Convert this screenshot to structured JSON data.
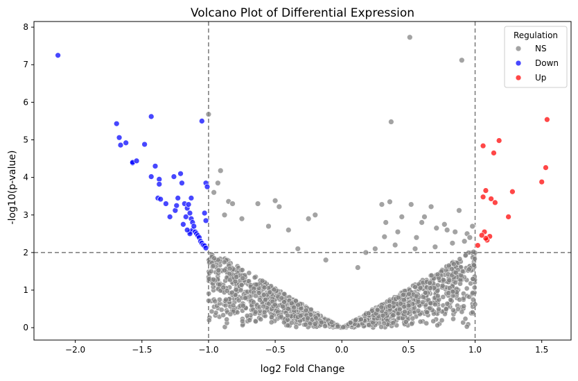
{
  "chart_data": {
    "type": "scatter",
    "title": "Volcano Plot of Differential Expression",
    "xlabel": "log2 Fold Change",
    "ylabel": "-log10(p-value)",
    "xlim": [
      -2.31,
      1.72
    ],
    "ylim": [
      -0.33,
      8.15
    ],
    "xticks": [
      -2.0,
      -1.5,
      -1.0,
      -0.5,
      0.0,
      0.5,
      1.0,
      1.5
    ],
    "xtick_labels": [
      "−2.0",
      "−1.5",
      "−1.0",
      "−0.5",
      "0.0",
      "0.5",
      "1.0",
      "1.5"
    ],
    "yticks": [
      0,
      1,
      2,
      3,
      4,
      5,
      6,
      7,
      8
    ],
    "ytick_labels": [
      "0",
      "1",
      "2",
      "3",
      "4",
      "5",
      "6",
      "7",
      "8"
    ],
    "thresholds": {
      "x": [
        -1.0,
        1.0
      ],
      "y": 2.0
    },
    "grid": false,
    "legend": {
      "title": "Regulation",
      "position": "top-right"
    },
    "series": [
      {
        "name": "NS",
        "color": "#808080",
        "x": [
          0.51,
          0.9,
          0.37,
          -1.0,
          -0.93,
          -0.96,
          -0.91,
          -0.85,
          -0.5,
          -0.82,
          -0.63,
          -0.47,
          -0.2,
          -0.25,
          -0.88,
          -0.75,
          -0.55,
          -0.4,
          0.3,
          0.36,
          0.52,
          0.45,
          0.62,
          0.67,
          0.77,
          0.79,
          0.88,
          0.94,
          0.98,
          0.33,
          0.32,
          0.6,
          0.42,
          0.71,
          0.85,
          0.56,
          0.18,
          0.12,
          -0.12,
          -0.33,
          0.25,
          0.4,
          0.55,
          0.7,
          0.83,
          0.92,
          0.96
        ],
        "y": [
          7.73,
          7.12,
          5.48,
          5.68,
          3.85,
          3.6,
          4.18,
          3.36,
          3.38,
          3.3,
          3.3,
          3.22,
          3.0,
          2.9,
          3.0,
          2.9,
          2.7,
          2.6,
          3.28,
          3.35,
          3.28,
          2.95,
          2.95,
          3.22,
          2.75,
          2.6,
          3.12,
          2.5,
          2.7,
          2.8,
          2.42,
          2.8,
          2.55,
          2.65,
          2.55,
          2.4,
          2.0,
          1.6,
          1.8,
          2.1,
          2.1,
          2.2,
          2.1,
          2.15,
          2.25,
          2.3,
          2.4
        ]
      },
      {
        "name": "Down",
        "color": "#0000ff",
        "x": [
          -2.13,
          -1.69,
          -1.67,
          -1.66,
          -1.62,
          -1.57,
          -1.57,
          -1.54,
          -1.48,
          -1.43,
          -1.43,
          -1.4,
          -1.38,
          -1.37,
          -1.37,
          -1.36,
          -1.32,
          -1.29,
          -1.26,
          -1.25,
          -1.24,
          -1.23,
          -1.21,
          -1.2,
          -1.19,
          -1.18,
          -1.17,
          -1.16,
          -1.15,
          -1.14,
          -1.14,
          -1.13,
          -1.13,
          -1.12,
          -1.12,
          -1.11,
          -1.1,
          -1.09,
          -1.08,
          -1.07,
          -1.06,
          -1.05,
          -1.04,
          -1.03,
          -1.02,
          -1.02,
          -1.01,
          -1.05,
          -1.03,
          -1.02,
          -1.14,
          -1.16
        ],
        "y": [
          7.25,
          5.43,
          5.06,
          4.86,
          4.92,
          4.38,
          4.4,
          4.44,
          4.88,
          5.62,
          4.02,
          4.3,
          3.45,
          3.95,
          3.82,
          3.42,
          3.3,
          2.95,
          4.02,
          3.12,
          3.25,
          3.45,
          4.1,
          3.85,
          2.75,
          3.3,
          2.95,
          3.18,
          3.28,
          3.05,
          2.55,
          2.9,
          3.45,
          2.8,
          2.6,
          2.7,
          2.55,
          2.5,
          2.45,
          2.4,
          2.3,
          2.25,
          2.2,
          2.18,
          2.12,
          3.85,
          3.75,
          5.5,
          3.05,
          2.85,
          2.5,
          2.6
        ]
      },
      {
        "name": "Up",
        "color": "#ff0000",
        "x": [
          1.54,
          1.53,
          1.5,
          1.28,
          1.25,
          1.18,
          1.15,
          1.14,
          1.12,
          1.11,
          1.09,
          1.08,
          1.08,
          1.07,
          1.06,
          1.06,
          1.05,
          1.02
        ],
        "y": [
          5.54,
          4.26,
          3.88,
          3.62,
          2.95,
          4.98,
          3.33,
          4.65,
          3.43,
          2.43,
          2.33,
          2.38,
          3.65,
          2.55,
          4.84,
          3.48,
          2.46,
          2.19
        ]
      }
    ]
  }
}
